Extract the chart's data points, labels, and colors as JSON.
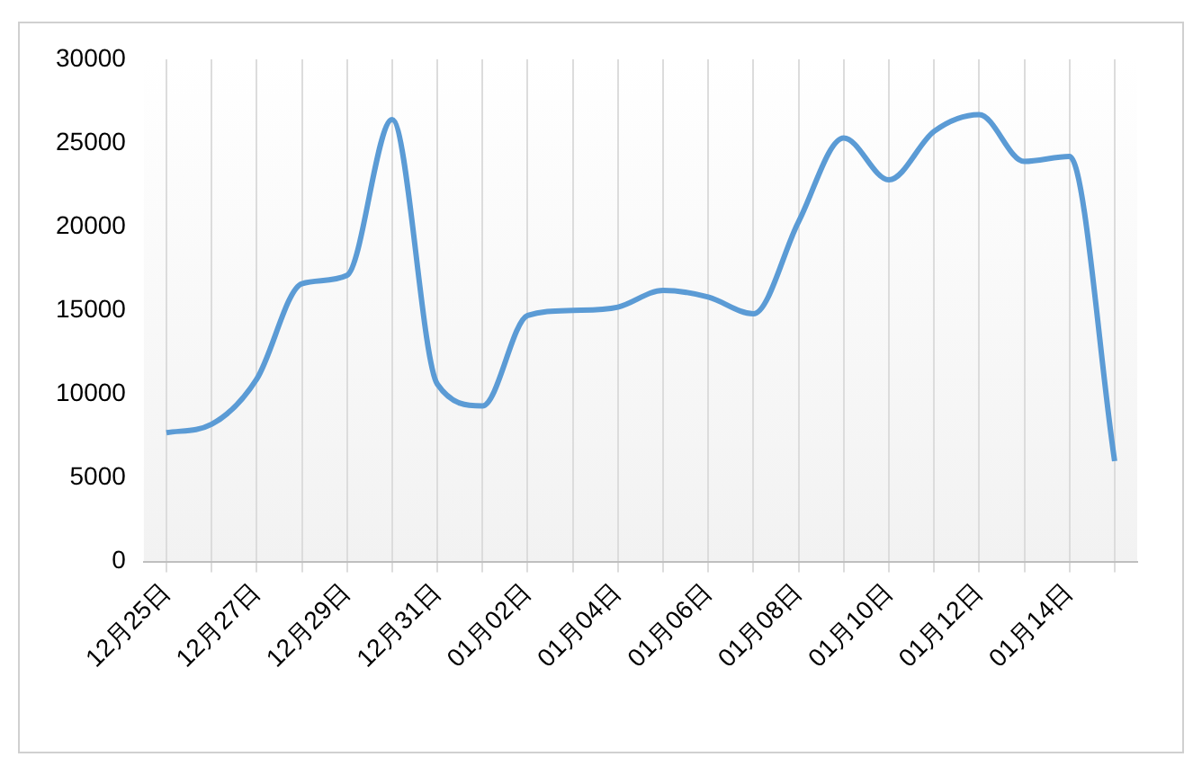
{
  "chart_data": {
    "type": "line",
    "categories": [
      "12月25日",
      null,
      "12月27日",
      null,
      "12月29日",
      null,
      "12月31日",
      null,
      "01月02日",
      null,
      "01月04日",
      null,
      "01月06日",
      null,
      "01月08日",
      null,
      "01月10日",
      null,
      "01月12日",
      null,
      "01月14日",
      null
    ],
    "series": [
      {
        "color": "#5b9bd5",
        "values": [
          7700,
          8200,
          10900,
          16600,
          17100,
          26400,
          10600,
          9300,
          14700,
          15000,
          15200,
          16200,
          15800,
          14800,
          20300,
          25300,
          22800,
          25700,
          26700,
          23900,
          24200,
          6000
        ]
      }
    ],
    "ylim": [
      0,
      30000
    ],
    "yticks": [
      0,
      5000,
      10000,
      15000,
      20000,
      25000,
      30000
    ],
    "grid": "x",
    "legend": false,
    "marker": "none",
    "line_style": "solid"
  }
}
